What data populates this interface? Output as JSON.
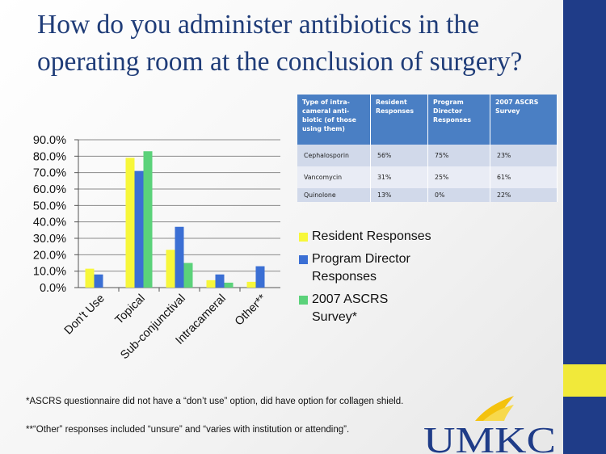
{
  "slide": {
    "title": "How do you administer antibiotics in the operating room at the conclusion of surgery?",
    "footnote1": "*ASCRS questionnaire did not have a “don’t use” option, did have option for collagen shield.",
    "footnote2": "**“Other” responses included “unsure” and “varies with institution or attending”.",
    "logo_text": "UMKC",
    "colors": {
      "title": "#1f3c78",
      "brand_blue": "#1f3c88",
      "brand_gold": "#f1e93a"
    }
  },
  "table": {
    "headers": [
      "Type of intra-cameral anti-biotic (of those using them)",
      "Resident Responses",
      "Program Director Responses",
      "2007 ASCRS Survey"
    ],
    "rows": [
      [
        "Cephalosporin",
        "56%",
        "75%",
        "23%"
      ],
      [
        "Vancomycin",
        "31%",
        "25%",
        "61%"
      ],
      [
        "Quinolone",
        "13%",
        "0%",
        "22%"
      ]
    ]
  },
  "chart_data": {
    "type": "bar",
    "categories": [
      "Don't Use",
      "Topical",
      "Sub-conjunctival",
      "Intracameral",
      "Other**"
    ],
    "series": [
      {
        "name": "Resident Responses",
        "color": "#f7f73a",
        "values": [
          11.5,
          79.0,
          23.0,
          4.5,
          3.5
        ]
      },
      {
        "name": "Program Director Responses",
        "color": "#3b6fd4",
        "values": [
          8.0,
          71.0,
          37.0,
          8.0,
          13.0
        ]
      },
      {
        "name": "2007 ASCRS Survey*",
        "color": "#5bd27a",
        "values": [
          null,
          83.0,
          15.0,
          3.0,
          null
        ]
      }
    ],
    "y_ticks": [
      "0.0%",
      "10.0%",
      "20.0%",
      "30.0%",
      "40.0%",
      "50.0%",
      "60.0%",
      "70.0%",
      "80.0%",
      "90.0%"
    ],
    "ylim": [
      0,
      90
    ],
    "grid": true,
    "legend_position": "right"
  }
}
